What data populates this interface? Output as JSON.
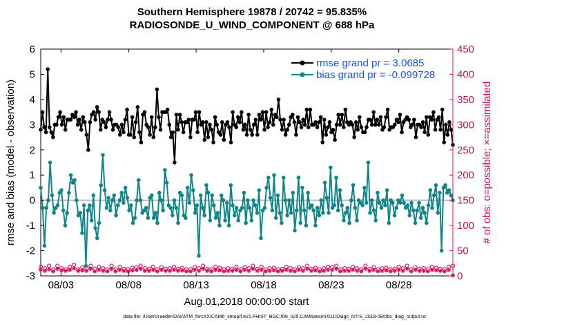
{
  "chart_data": {
    "type": "line",
    "title_line1": "Southern Hemisphere 19878 / 20742 = 95.835%",
    "title_line2": "RADIOSONDE_U_WIND_COMPONENT @ 688 hPa",
    "xlabel": "Aug.01,2018 00:00:00 start",
    "ylabel": "rmse and bias (model - observation)",
    "ylabel_right": "# of obs: o=possible; ×=assimilated",
    "footnote": "data file: /Users/raeder/DAI/ATM_forcXX/CAM6_setup/f.e21.FHIST_BGC.f09_025.CAM6assim.011/Diags_NTrS_2018-08/obs_diag_output.nc",
    "xlim": [
      1.5,
      32.0
    ],
    "ylim": [
      -3,
      6
    ],
    "ylim_right": [
      0,
      450
    ],
    "x_ticks": [
      3,
      8,
      13,
      18,
      23,
      28
    ],
    "x_tick_labels": [
      "08/03",
      "08/08",
      "08/13",
      "08/18",
      "08/23",
      "08/28"
    ],
    "y_ticks": [
      -3,
      -2,
      -1,
      0,
      1,
      2,
      3,
      4,
      5,
      6
    ],
    "y_tick_labels": [
      "-3",
      "-2",
      "-1",
      "0",
      "1",
      "2",
      "3",
      "4",
      "5",
      "6"
    ],
    "y_ticks_right": [
      0,
      50,
      100,
      150,
      200,
      250,
      300,
      350,
      400,
      450
    ],
    "y_tick_labels_right": [
      "0",
      "50",
      "100",
      "150",
      "200",
      "250",
      "300",
      "350",
      "400",
      "450"
    ],
    "colors": {
      "rmse": "#000000",
      "bias": "#0f8588",
      "obs": "#d4145a",
      "zero_line": "#b8b8b8",
      "legend_text": "#1a4fff"
    },
    "series": [
      {
        "name": "rmse",
        "legend": "rmse grand pr = 3.0685",
        "values": [
          2.8,
          3.5,
          2.9,
          2.7,
          5.2,
          2.9,
          2.7,
          2.5,
          3.0,
          3.0,
          3.3,
          3.5,
          3.0,
          3.3,
          2.8,
          3.2,
          3.2,
          3.2,
          3.4,
          3.3,
          3.5,
          3.0,
          3.2,
          2.8,
          3.3,
          3.1,
          2.6,
          2.0,
          3.1,
          3.4,
          3.5,
          3.2,
          3.7,
          3.5,
          2.8,
          3.2,
          3.1,
          2.9,
          3.2,
          3.5,
          3.2,
          2.8,
          3.0,
          3.0,
          2.9,
          2.6,
          3.0,
          2.7,
          3.2,
          3.6,
          2.6,
          2.6,
          3.3,
          2.5,
          3.1,
          3.7,
          2.7,
          2.3,
          3.4,
          3.5,
          3.0,
          2.9,
          2.6,
          3.3,
          2.5,
          2.9,
          4.4,
          3.3,
          2.8,
          3.5,
          3.5,
          3.5,
          3.6,
          3.0,
          2.5,
          2.7,
          1.5,
          3.4,
          2.8,
          3.4,
          3.1,
          2.7,
          3.1,
          3.1,
          3.2,
          2.5,
          3.2,
          3.2,
          3.5,
          2.7,
          3.5,
          3.0,
          3.1,
          2.4,
          3.1,
          2.5,
          3.0,
          2.8,
          2.3,
          3.3,
          3.0,
          2.7,
          2.6,
          3.1,
          2.4,
          3.0,
          3.1,
          2.9,
          2.3,
          3.5,
          3.0,
          2.9,
          3.3,
          3.1,
          3.5,
          2.8,
          3.0,
          2.6,
          3.4,
          2.8,
          2.6,
          3.0,
          3.2,
          2.6,
          3.4,
          3.2,
          3.5,
          2.8,
          3.5,
          2.9,
          3.1,
          3.6,
          3.0,
          3.4,
          3.3,
          4.0,
          3.2,
          2.8,
          3.2,
          2.6,
          2.8,
          3.0,
          3.3,
          3.4,
          3.1,
          2.6,
          3.3,
          3.1,
          2.9,
          3.2,
          3.0,
          3.6,
          2.9,
          3.6,
          3.0,
          3.0,
          3.1,
          2.9,
          3.1,
          3.3,
          2.3,
          3.2,
          2.6,
          2.9,
          3.1,
          2.7,
          2.8,
          2.4,
          3.0,
          3.4,
          3.0,
          3.4,
          2.9,
          3.6,
          3.1,
          3.0,
          3.1,
          3.0,
          2.5,
          3.1,
          2.8,
          3.3,
          2.9,
          2.7,
          2.7,
          2.9,
          3.2,
          3.2,
          3.0,
          3.5,
          3.0,
          3.2,
          3.0,
          3.3,
          2.8,
          2.9,
          3.3,
          3.6,
          2.8,
          2.9,
          2.9,
          3.0,
          3.2,
          3.1,
          3.4,
          2.7,
          3.1,
          3.2,
          3.3,
          3.2,
          2.9,
          3.0,
          3.2,
          2.5,
          3.0,
          3.0,
          2.9,
          3.1,
          2.7,
          3.3,
          2.6,
          3.3,
          3.2,
          3.5,
          2.8,
          3.2,
          3.3,
          2.8,
          3.6,
          2.3,
          3.0,
          2.6,
          3.1,
          2.8,
          2.2
        ],
        "_note": "values sampled every 0.125 day from x=1.5"
      },
      {
        "name": "bias",
        "legend": "bias grand pr = -0.099728",
        "values": [
          0.5,
          -0.3,
          -1.8,
          -0.3,
          0.0,
          1.5,
          0.2,
          -0.5,
          -0.3,
          -0.2,
          0.3,
          0.4,
          -0.4,
          -1.0,
          -0.5,
          0.3,
          1.0,
          0.7,
          0.8,
          0.0,
          -0.6,
          -0.5,
          -1.3,
          -0.2,
          -2.6,
          -0.4,
          -0.2,
          -0.8,
          0.2,
          -1.1,
          -1.5,
          -0.9,
          0.6,
          1.8,
          0.4,
          -0.3,
          0.1,
          -0.4,
          0.0,
          0.2,
          -0.6,
          -0.2,
          0.0,
          0.3,
          -0.1,
          0.5,
          0.1,
          -0.4,
          -0.2,
          -0.9,
          -0.7,
          0.0,
          0.8,
          0.0,
          -0.5,
          -0.4,
          -0.3,
          -0.7,
          0.1,
          0.2,
          -0.7,
          -0.5,
          -0.9,
          0.3,
          0.0,
          -0.4,
          1.2,
          0.7,
          -0.2,
          -0.3,
          -0.6,
          0.0,
          -0.3,
          -0.9,
          0.3,
          0.2,
          -0.6,
          -0.7,
          0.5,
          -0.1,
          1.0,
          0.4,
          -0.5,
          -0.2,
          -2.2,
          0.2,
          -0.3,
          -0.6,
          0.6,
          0.3,
          -0.8,
          0.2,
          -0.2,
          -0.7,
          -0.5,
          -1.0,
          0.2,
          0.0,
          -0.8,
          -0.1,
          -1.0,
          0.6,
          -0.2,
          -0.6,
          -0.3,
          -0.8,
          -0.4,
          -0.3,
          0.3,
          -0.9,
          0.0,
          -0.3,
          -0.8,
          0.0,
          -0.2,
          -0.5,
          0.4,
          -1.5,
          -0.4,
          -0.3,
          0.5,
          0.9,
          0.1,
          -0.4,
          1.0,
          -0.7,
          0.2,
          -0.5,
          -0.9,
          0.9,
          0.0,
          -0.6,
          0.0,
          -0.5,
          0.3,
          -1.2,
          -0.4,
          0.9,
          -0.9,
          0.5,
          -0.4,
          -1.0,
          0.3,
          -0.3,
          -0.2,
          -0.4,
          -1.0,
          -0.3,
          -0.6,
          0.0,
          -0.5,
          0.7,
          0.1,
          -0.5,
          1.3,
          -0.3,
          -0.2,
          0.9,
          -0.4,
          0.4,
          -0.2,
          -0.8,
          -0.5,
          -0.3,
          -0.9,
          0.0,
          0.6,
          -0.3,
          -0.8,
          0.0,
          -0.1,
          -0.2,
          0.5,
          -0.1,
          1.5,
          -0.5,
          0.0,
          -0.4,
          -0.8,
          0.3,
          -0.1,
          -0.3,
          0.0,
          -0.2,
          0.4,
          -0.9,
          0.0,
          -0.1,
          -0.6,
          -0.3,
          0.0,
          -0.1,
          0.2,
          -0.1,
          -0.3,
          -0.2,
          -0.6,
          -0.1,
          -0.4,
          -0.9,
          -0.4,
          -0.1,
          -0.7,
          -0.3,
          -0.5,
          -0.9,
          -0.2,
          0.4,
          -0.3,
          0.2,
          0.6,
          -0.5,
          0.3,
          -2.0,
          0.5,
          0.6,
          0.3,
          0.4,
          0.2,
          0.0
        ]
      },
      {
        "name": "possible",
        "marker": "o",
        "values": [
          18,
          15,
          20,
          13,
          20,
          15,
          13,
          18,
          22,
          13,
          17,
          15,
          20,
          14,
          18,
          15,
          13,
          20,
          13,
          18,
          14,
          13,
          16,
          17,
          20,
          15,
          14,
          18,
          13,
          17,
          14,
          15,
          18,
          14,
          16,
          13,
          13,
          17,
          15,
          20,
          14,
          13,
          18,
          16,
          13,
          15,
          14,
          18,
          13,
          17,
          15,
          20,
          14,
          18,
          13,
          15,
          16,
          13,
          14,
          18,
          15,
          13,
          17,
          15,
          20,
          14,
          16,
          13,
          15,
          18,
          17,
          20,
          13,
          15,
          14,
          18,
          15,
          13,
          20,
          14,
          17,
          13,
          15,
          16,
          13,
          14,
          18,
          15,
          20,
          13,
          17,
          14,
          15,
          13,
          18,
          16,
          14,
          13,
          18,
          20
        ],
        "_note": "obs count near 0; sparse markers"
      },
      {
        "name": "assimilated",
        "marker": "*",
        "values": [
          12,
          10,
          13,
          9,
          14,
          11,
          10,
          12,
          15,
          10,
          11,
          10,
          14,
          9,
          12,
          10,
          9,
          14,
          9,
          12,
          10,
          9,
          11,
          12,
          14,
          10,
          10,
          12,
          9,
          12,
          10,
          10,
          12,
          10,
          11,
          9,
          9,
          12,
          10,
          14,
          10,
          9,
          12,
          11,
          9,
          10,
          10,
          12,
          9,
          12,
          10,
          14,
          10,
          12,
          9,
          10,
          11,
          9,
          10,
          12,
          10,
          9,
          12,
          10,
          14,
          10,
          11,
          9,
          10,
          12,
          12,
          14,
          9,
          10,
          10,
          12,
          10,
          9,
          14,
          10,
          12,
          9,
          10,
          11,
          9,
          10,
          12,
          10,
          14,
          9,
          12,
          10,
          10,
          9,
          12,
          11,
          10,
          9,
          12,
          1
        ]
      }
    ]
  }
}
